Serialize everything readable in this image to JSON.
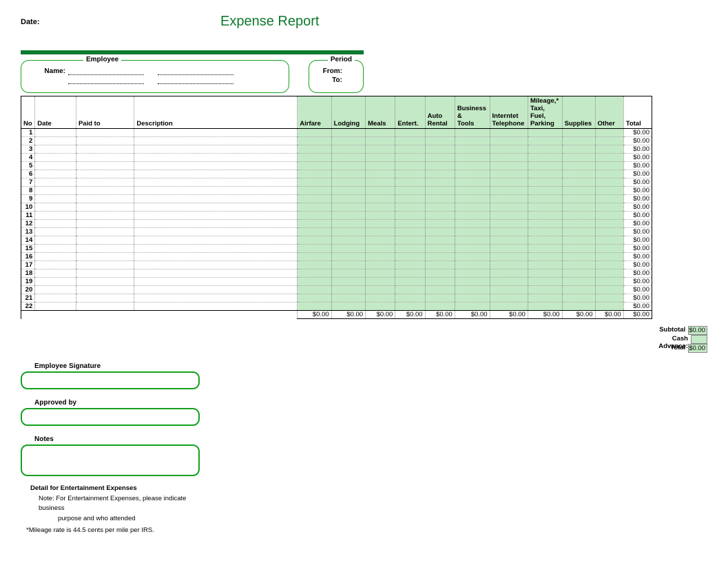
{
  "header": {
    "date_label": "Date:",
    "title": "Expense Report"
  },
  "employee_box": {
    "legend": "Employee",
    "name_label": "Name:"
  },
  "period_box": {
    "legend": "Period",
    "from_label": "From:",
    "to_label": "To:"
  },
  "table": {
    "columns": [
      "No",
      "Date",
      "Paid to",
      "Description",
      "Airfare",
      "Lodging",
      "Meals",
      "Entert.",
      "Auto Rental",
      "Business & Tools",
      "Interntet Telephone",
      "Mileage,* Taxi, Fuel, Parking",
      "Supplies",
      "Other",
      "Total"
    ],
    "row_count": 22,
    "row_total": "$0.00",
    "col_total": "$0.00",
    "colors": {
      "amount_bg": "#c4e9c6",
      "border_accent": "#16a020"
    }
  },
  "summary": {
    "subtotal_label": "Subtotal",
    "subtotal_value": "$0.00",
    "advance_label": "Cash Advance:",
    "total_label": "Total",
    "total_value": "$0.00"
  },
  "signatures": {
    "emp_sig": "Employee Signature",
    "approved": "Approved by",
    "notes": "Notes"
  },
  "footer": {
    "title": "Detail for Entertainment Expenses",
    "note1": "Note:  For Entertainment Expenses, please indicate business",
    "note2": "purpose and who attended",
    "mileage": "*Mileage rate is 44.5 cents per mile per IRS."
  }
}
